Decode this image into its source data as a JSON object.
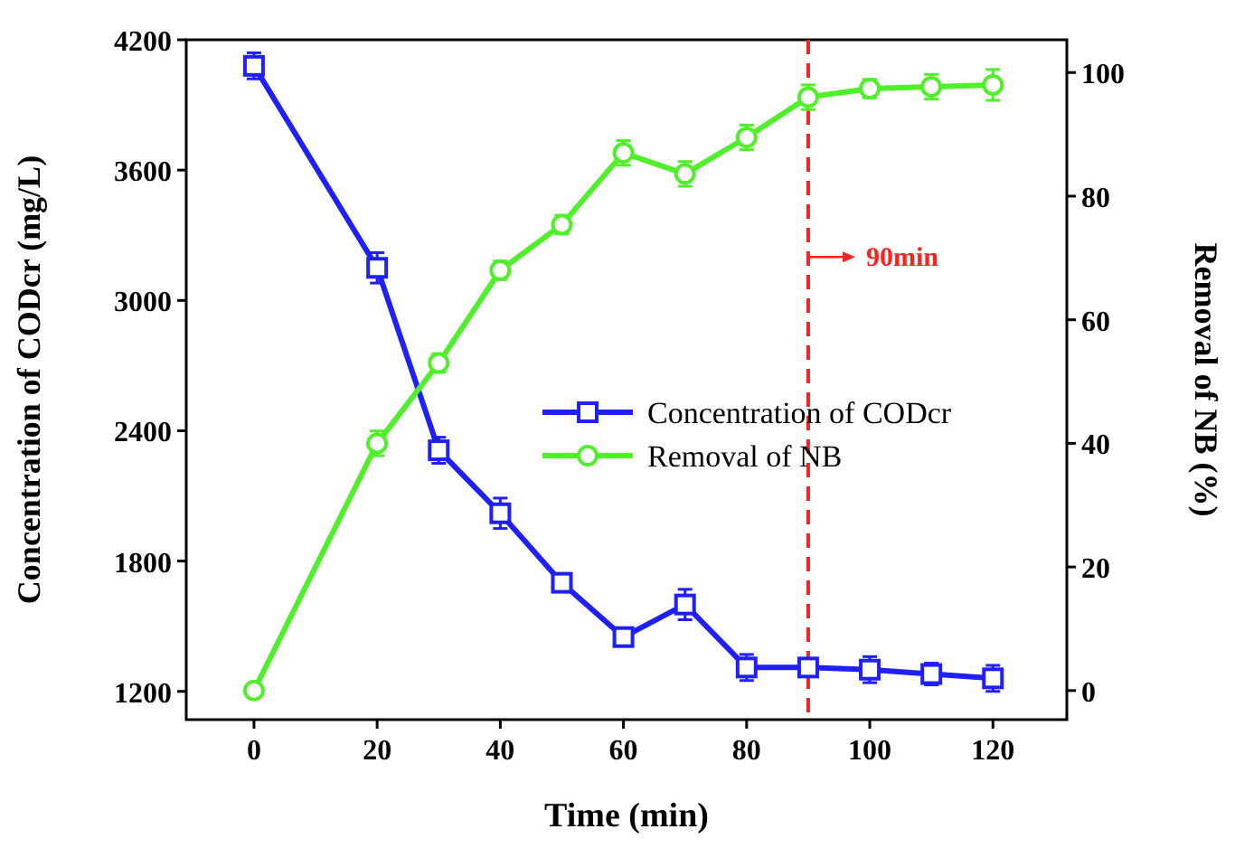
{
  "chart_data": {
    "type": "line",
    "xlabel": "Time (min)",
    "ylabel": "Concentration of CODcr (mg/L)",
    "y2label": "Removal of NB (%)",
    "x": [
      0,
      20,
      30,
      40,
      50,
      60,
      70,
      80,
      90,
      100,
      110,
      120
    ],
    "xlim": [
      -11,
      132
    ],
    "xticks": [
      0,
      20,
      40,
      60,
      80,
      100,
      120
    ],
    "ylim": [
      1070,
      4200
    ],
    "yticks": [
      1200,
      1800,
      2400,
      3000,
      3600,
      4200
    ],
    "y2lim": [
      -4.7,
      105.3
    ],
    "y2ticks": [
      0,
      20,
      40,
      60,
      80,
      100
    ],
    "series": [
      {
        "name": "Concentration of CODcr",
        "color": "#1f1fff",
        "marker": "square",
        "values": [
          4080,
          3150,
          2310,
          2020,
          1700,
          1450,
          1600,
          1310,
          1310,
          1300,
          1280,
          1260
        ],
        "errors": [
          60,
          70,
          60,
          70,
          30,
          30,
          70,
          60,
          40,
          60,
          50,
          60
        ]
      },
      {
        "name": "Removal of NB",
        "color": "#4ff02a",
        "marker": "circle",
        "axis": "y2",
        "values": [
          0,
          40,
          53,
          68,
          75.4,
          87,
          83.6,
          89.5,
          96,
          97.4,
          97.7,
          98
        ],
        "errors": [
          1,
          2,
          1.5,
          1.5,
          1.5,
          2,
          2,
          2,
          2,
          1.5,
          2,
          2.5
        ]
      }
    ],
    "ref_lines": [
      {
        "axis": "x",
        "value": 90,
        "color": "#ff2020",
        "line_style": "dashed"
      }
    ],
    "annotations": [
      {
        "text": "90min",
        "x": 90,
        "y": 3200
      }
    ],
    "legend": "right",
    "line_style": "solid"
  }
}
